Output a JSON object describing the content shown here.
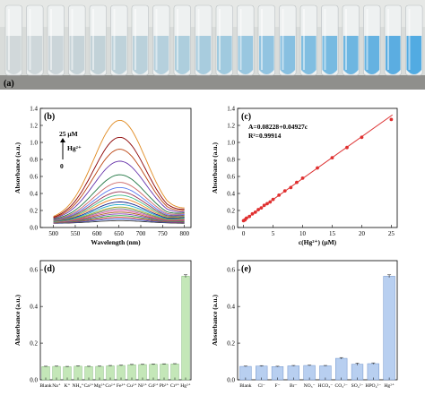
{
  "photo": {
    "label": "(a)",
    "tubes": [
      {
        "color": "#cfd6d8"
      },
      {
        "color": "#cbd5d8"
      },
      {
        "color": "#c8d3d7"
      },
      {
        "color": "#c3d1d6"
      },
      {
        "color": "#bfd0d6"
      },
      {
        "color": "#bbd0d8"
      },
      {
        "color": "#b6cfd9"
      },
      {
        "color": "#b1cedb"
      },
      {
        "color": "#a9cbdb"
      },
      {
        "color": "#a3c9dc"
      },
      {
        "color": "#9bc7dd"
      },
      {
        "color": "#93c4de"
      },
      {
        "color": "#8cc1df"
      },
      {
        "color": "#82bddf"
      },
      {
        "color": "#7abadf"
      },
      {
        "color": "#70b6df"
      },
      {
        "color": "#66b2df"
      },
      {
        "color": "#5daedf"
      },
      {
        "color": "#52a9df"
      },
      {
        "color": "#49a6e0"
      }
    ]
  },
  "chart_data": [
    {
      "panel": "(b)",
      "type": "line",
      "xlabel": "Wavelength (nm)",
      "ylabel": "Absorbance (a.u.)",
      "xlim": [
        470,
        815
      ],
      "ylim": [
        0,
        1.4
      ],
      "xticks": [
        500,
        550,
        600,
        650,
        700,
        750,
        800
      ],
      "yticks": [
        0.0,
        0.2,
        0.4,
        0.6,
        0.8,
        1.0,
        1.2,
        1.4
      ],
      "annotation": {
        "top": "25 μM",
        "ion": "Hg²⁺",
        "bottom": "0"
      },
      "series": [
        {
          "peak": 0.08,
          "color": "#404040"
        },
        {
          "peak": 0.1,
          "color": "#3355cc"
        },
        {
          "peak": 0.12,
          "color": "#cc3333"
        },
        {
          "peak": 0.14,
          "color": "#33aa44"
        },
        {
          "peak": 0.16,
          "color": "#8844bb"
        },
        {
          "peak": 0.18,
          "color": "#aa6622"
        },
        {
          "peak": 0.2,
          "color": "#dd55aa"
        },
        {
          "peak": 0.22,
          "color": "#777777"
        },
        {
          "peak": 0.24,
          "color": "#99aa22"
        },
        {
          "peak": 0.27,
          "color": "#22aacc"
        },
        {
          "peak": 0.3,
          "color": "#112288"
        },
        {
          "peak": 0.34,
          "color": "#ee8822"
        },
        {
          "peak": 0.38,
          "color": "#44bb88"
        },
        {
          "peak": 0.42,
          "color": "#993355"
        },
        {
          "peak": 0.47,
          "color": "#5577ee"
        },
        {
          "peak": 0.53,
          "color": "#cc6666"
        },
        {
          "peak": 0.62,
          "color": "#227744"
        },
        {
          "peak": 0.78,
          "color": "#6633aa"
        },
        {
          "peak": 0.92,
          "color": "#bb4411"
        },
        {
          "peak": 1.06,
          "color": "#8b0000"
        },
        {
          "peak": 1.26,
          "color": "#e08a20"
        }
      ]
    },
    {
      "panel": "(c)",
      "type": "scatter",
      "xlabel": "c(Hg²⁺) (μM)",
      "ylabel": "Absorbance (a.u.)",
      "xlim": [
        -1,
        26
      ],
      "ylim": [
        0,
        1.4
      ],
      "xticks": [
        0,
        5,
        10,
        15,
        20,
        25
      ],
      "yticks": [
        0.0,
        0.2,
        0.4,
        0.6,
        0.8,
        1.0,
        1.2,
        1.4
      ],
      "equation": "A=0.08228+0.04927c",
      "r2": "R²=0.99914",
      "fit": {
        "intercept": 0.08228,
        "slope": 0.04927
      },
      "points": [
        {
          "x": 0,
          "y": 0.08
        },
        {
          "x": 0.25,
          "y": 0.09
        },
        {
          "x": 0.5,
          "y": 0.11
        },
        {
          "x": 1,
          "y": 0.13
        },
        {
          "x": 1.5,
          "y": 0.16
        },
        {
          "x": 2,
          "y": 0.18
        },
        {
          "x": 2.5,
          "y": 0.21
        },
        {
          "x": 3,
          "y": 0.23
        },
        {
          "x": 3.5,
          "y": 0.26
        },
        {
          "x": 4,
          "y": 0.28
        },
        {
          "x": 4.5,
          "y": 0.3
        },
        {
          "x": 5,
          "y": 0.33
        },
        {
          "x": 6,
          "y": 0.38
        },
        {
          "x": 7,
          "y": 0.43
        },
        {
          "x": 8,
          "y": 0.47
        },
        {
          "x": 9,
          "y": 0.53
        },
        {
          "x": 10,
          "y": 0.58
        },
        {
          "x": 12.5,
          "y": 0.7
        },
        {
          "x": 15,
          "y": 0.82
        },
        {
          "x": 17.5,
          "y": 0.94
        },
        {
          "x": 20,
          "y": 1.06
        },
        {
          "x": 25,
          "y": 1.27
        }
      ]
    },
    {
      "panel": "(d)",
      "type": "bar",
      "ylabel": "Absorbance (a.u.)",
      "ylim": [
        0,
        0.65
      ],
      "yticks": [
        0.0,
        0.2,
        0.4,
        0.6
      ],
      "bar_color": "#c4e7b8",
      "bar_edge": "#7fb876",
      "categories": [
        "Blank",
        "Na⁺",
        "K⁺",
        "NH₄⁺",
        "Ca²⁺",
        "Mg²⁺",
        "Co²⁺",
        "Fe³⁺",
        "Cu²⁺",
        "Ni²⁺",
        "Cd²⁺",
        "Pb²⁺",
        "Cr³⁺",
        "Hg²⁺"
      ],
      "values": [
        0.072,
        0.073,
        0.071,
        0.074,
        0.072,
        0.073,
        0.076,
        0.078,
        0.082,
        0.083,
        0.084,
        0.085,
        0.086,
        0.565
      ],
      "errors": [
        0.002,
        0.002,
        0.002,
        0.002,
        0.002,
        0.002,
        0.002,
        0.002,
        0.002,
        0.002,
        0.002,
        0.002,
        0.002,
        0.008
      ]
    },
    {
      "panel": "(e)",
      "type": "bar",
      "ylabel": "Absorbance (a.u.)",
      "ylim": [
        0,
        0.65
      ],
      "yticks": [
        0.0,
        0.2,
        0.4,
        0.6
      ],
      "bar_color": "#b8cff0",
      "bar_edge": "#6f93cc",
      "categories": [
        "Blank",
        "Cl⁻",
        "F⁻",
        "Br⁻",
        "NO₃⁻",
        "HCO₃⁻",
        "CO₃²⁻",
        "SO₄²⁻",
        "HPO₄²⁻",
        "Hg²⁺"
      ],
      "values": [
        0.073,
        0.075,
        0.072,
        0.076,
        0.078,
        0.076,
        0.117,
        0.085,
        0.088,
        0.565
      ],
      "errors": [
        0.002,
        0.002,
        0.002,
        0.002,
        0.002,
        0.002,
        0.004,
        0.006,
        0.004,
        0.008
      ]
    }
  ]
}
